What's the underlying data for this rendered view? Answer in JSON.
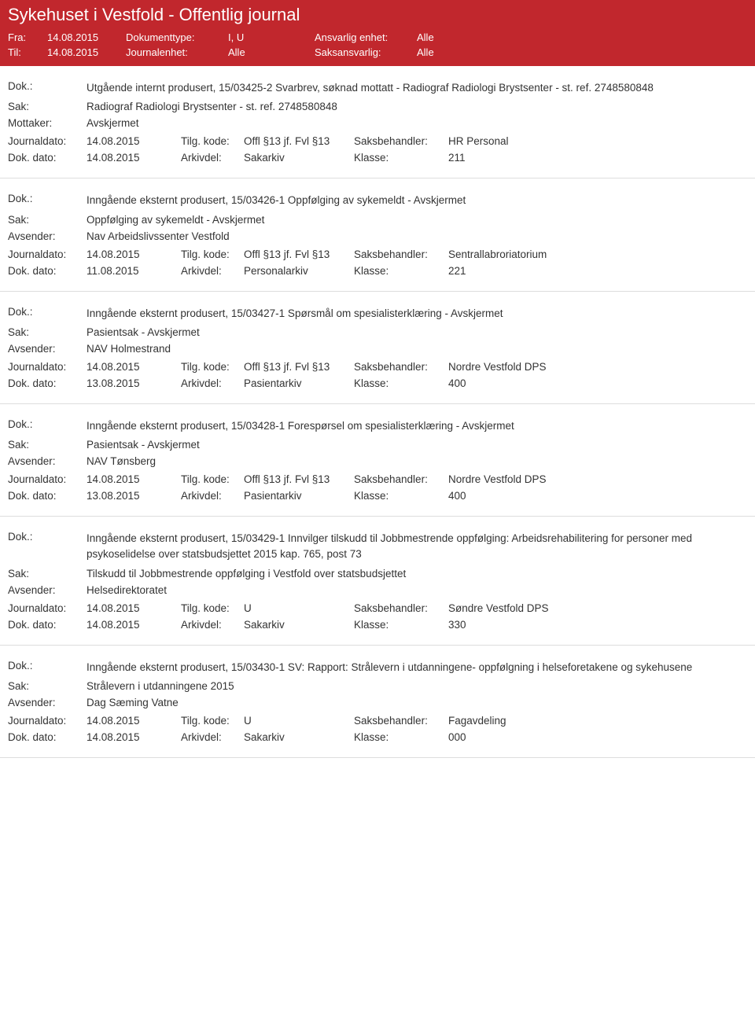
{
  "header": {
    "title": "Sykehuset i Vestfold - Offentlig journal",
    "fra_label": "Fra:",
    "fra_value": "14.08.2015",
    "til_label": "Til:",
    "til_value": "14.08.2015",
    "dokumenttype_label": "Dokumenttype:",
    "dokumenttype_value": "I, U",
    "journalenhet_label": "Journalenhet:",
    "journalenhet_value": "Alle",
    "ansvarlig_label": "Ansvarlig enhet:",
    "ansvarlig_value": "Alle",
    "saksansvarlig_label": "Saksansvarlig:",
    "saksansvarlig_value": "Alle"
  },
  "labels": {
    "dok": "Dok.:",
    "sak": "Sak:",
    "mottaker": "Mottaker:",
    "avsender": "Avsender:",
    "journaldato": "Journaldato:",
    "dokdato": "Dok. dato:",
    "tilgkode": "Tilg. kode:",
    "arkivdel": "Arkivdel:",
    "saksbehandler": "Saksbehandler:",
    "klasse": "Klasse:"
  },
  "entries": [
    {
      "dok": "Utgående internt produsert, 15/03425-2 Svarbrev, søknad mottatt - Radiograf Radiologi Brystsenter - st. ref. 2748580848",
      "sak": "Radiograf Radiologi Brystsenter - st. ref. 2748580848",
      "party_label": "Mottaker:",
      "party_value": "Avskjermet",
      "journaldato": "14.08.2015",
      "tilgkode": "Offl §13 jf. Fvl §13",
      "saksbehandler": "HR Personal",
      "dokdato": "14.08.2015",
      "arkivdel": "Sakarkiv",
      "klasse": "211"
    },
    {
      "dok": "Inngående eksternt produsert, 15/03426-1 Oppfølging av sykemeldt - Avskjermet",
      "sak": "Oppfølging av sykemeldt - Avskjermet",
      "party_label": "Avsender:",
      "party_value": "Nav Arbeidslivssenter Vestfold",
      "journaldato": "14.08.2015",
      "tilgkode": "Offl §13 jf. Fvl §13",
      "saksbehandler": "Sentrallabroriatorium",
      "dokdato": "11.08.2015",
      "arkivdel": "Personalarkiv",
      "klasse": "221"
    },
    {
      "dok": "Inngående eksternt produsert, 15/03427-1 Spørsmål om spesialisterklæring - Avskjermet",
      "sak": "Pasientsak - Avskjermet",
      "party_label": "Avsender:",
      "party_value": "NAV Holmestrand",
      "journaldato": "14.08.2015",
      "tilgkode": "Offl §13 jf. Fvl §13",
      "saksbehandler": "Nordre Vestfold DPS",
      "dokdato": "13.08.2015",
      "arkivdel": "Pasientarkiv",
      "klasse": "400"
    },
    {
      "dok": "Inngående eksternt produsert, 15/03428-1 Forespørsel om spesialisterklæring - Avskjermet",
      "sak": "Pasientsak - Avskjermet",
      "party_label": "Avsender:",
      "party_value": "NAV Tønsberg",
      "journaldato": "14.08.2015",
      "tilgkode": "Offl §13 jf. Fvl §13",
      "saksbehandler": "Nordre Vestfold DPS",
      "dokdato": "13.08.2015",
      "arkivdel": "Pasientarkiv",
      "klasse": "400"
    },
    {
      "dok": "Inngående eksternt produsert, 15/03429-1 Innvilger tilskudd til Jobbmestrende oppfølging: Arbeidsrehabilitering for personer med psykoselidelse over statsbudsjettet 2015 kap. 765, post 73",
      "sak": "Tilskudd til Jobbmestrende oppfølging i Vestfold over statsbudsjettet",
      "party_label": "Avsender:",
      "party_value": "Helsedirektoratet",
      "journaldato": "14.08.2015",
      "tilgkode": "U",
      "saksbehandler": "Søndre Vestfold DPS",
      "dokdato": "14.08.2015",
      "arkivdel": "Sakarkiv",
      "klasse": "330"
    },
    {
      "dok": "Inngående eksternt produsert, 15/03430-1 SV: Rapport: Strålevern i utdanningene- oppfølgning i helseforetakene og sykehusene",
      "sak": "Strålevern i utdanningene 2015",
      "party_label": "Avsender:",
      "party_value": "Dag Sæming Vatne",
      "journaldato": "14.08.2015",
      "tilgkode": "U",
      "saksbehandler": "Fagavdeling",
      "dokdato": "14.08.2015",
      "arkivdel": "Sakarkiv",
      "klasse": "000"
    }
  ]
}
